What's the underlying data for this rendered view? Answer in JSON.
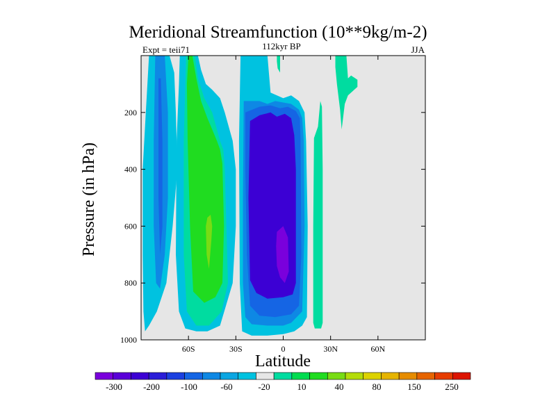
{
  "chart_data": {
    "type": "contour",
    "title": "Meridional Streamfunction (10**9kg/m-2)",
    "left_label": "Expt = teii71",
    "center_label": "112kyr BP",
    "right_label": "JJA",
    "xlabel": "Latitude",
    "ylabel": "Pressure (in hPa)",
    "xlim": [
      -90,
      90
    ],
    "ylim": [
      1000,
      0
    ],
    "x_ticks": [
      {
        "value": -60,
        "label": "60S"
      },
      {
        "value": -30,
        "label": "30S"
      },
      {
        "value": 0,
        "label": "0"
      },
      {
        "value": 30,
        "label": "30N"
      },
      {
        "value": 60,
        "label": "60N"
      }
    ],
    "y_ticks": [
      {
        "value": 200,
        "label": "200"
      },
      {
        "value": 400,
        "label": "400"
      },
      {
        "value": 600,
        "label": "600"
      },
      {
        "value": 800,
        "label": "800"
      },
      {
        "value": 1000,
        "label": "1000"
      }
    ],
    "background_color": "#e6e6e6",
    "colorbar": {
      "colors": [
        "#7a00dc",
        "#5a00d8",
        "#3c00d4",
        "#2b1ed8",
        "#1c40e0",
        "#1565e4",
        "#0e88e4",
        "#0aa6e2",
        "#00c2e0",
        "#e6e6e6",
        "#00dca0",
        "#00dc50",
        "#20dc20",
        "#78dc14",
        "#b4dc0a",
        "#dcd200",
        "#e6b400",
        "#e68c00",
        "#e66400",
        "#e63c00",
        "#dc1400"
      ],
      "labels": [
        "-300",
        "-200",
        "-100",
        "-60",
        "-20",
        "10",
        "40",
        "80",
        "150",
        "250"
      ]
    },
    "regions": [
      {
        "level": -20,
        "color": "#00c2e0",
        "lat": [
          -84.5,
          -72,
          -69,
          -68,
          -67,
          -70,
          -74,
          -80,
          -85,
          -87.5,
          -88.5,
          -89,
          -89,
          -87,
          -85
        ],
        "p": [
          0,
          0,
          60,
          200,
          400,
          600,
          800,
          900,
          950,
          970,
          900,
          700,
          400,
          200,
          0
        ]
      },
      {
        "level": -60,
        "color": "#0e88e4",
        "lat": [
          -80.5,
          -75,
          -73,
          -73,
          -75,
          -78,
          -80.5,
          -82,
          -82,
          -81
        ],
        "p": [
          0,
          0,
          200,
          500,
          700,
          820,
          800,
          600,
          300,
          0
        ]
      },
      {
        "level": -100,
        "color": "#1565e4",
        "lat": [
          -79,
          -77.5,
          -76.5,
          -76.5,
          -78,
          -79
        ],
        "p": [
          80,
          80,
          300,
          600,
          700,
          500
        ]
      },
      {
        "level": -20,
        "color": "#00c2e0",
        "lat": [
          -65.5,
          -54,
          -52,
          -49,
          -45,
          -40,
          -37,
          -32,
          -30,
          -30,
          -32,
          -40,
          -48,
          -55,
          -62,
          -66,
          -68,
          -67.5,
          -66
        ],
        "p": [
          0,
          0,
          50,
          100,
          120,
          150,
          200,
          300,
          400,
          600,
          800,
          950,
          970,
          970,
          960,
          900,
          700,
          300,
          100
        ]
      },
      {
        "level": 10,
        "color": "#00dca0",
        "lat": [
          -61.5,
          -56,
          -54,
          -50,
          -45,
          -42,
          -40,
          -38,
          -37,
          -36,
          -35,
          -39,
          -47,
          -55,
          -61,
          -63,
          -63
        ],
        "p": [
          0,
          0,
          80,
          150,
          200,
          260,
          300,
          330,
          400,
          600,
          800,
          900,
          950,
          950,
          900,
          700,
          300
        ]
      },
      {
        "level": 40,
        "color": "#20dc20",
        "lat": [
          -60,
          -57.5,
          -55,
          -52,
          -48,
          -45,
          -42,
          -40,
          -38.5,
          -37.5,
          -38.5,
          -43,
          -50,
          -57,
          -59,
          -60.5,
          -61
        ],
        "p": [
          0,
          0,
          80,
          160,
          220,
          260,
          300,
          330,
          380,
          600,
          800,
          850,
          870,
          830,
          600,
          300,
          100
        ]
      },
      {
        "level": 80,
        "color": "#78dc14",
        "lat": [
          -48,
          -46,
          -45,
          -45.5,
          -47,
          -48.5,
          -49
        ],
        "p": [
          570,
          560,
          600,
          650,
          750,
          700,
          600
        ]
      },
      {
        "level": -20,
        "color": "#00c2e0",
        "lat": [
          -27,
          -10,
          -8,
          0,
          5,
          10,
          13.5,
          14.5,
          15.5,
          15,
          12,
          7,
          0,
          -10,
          -20,
          -26,
          -27.5,
          -28
        ],
        "p": [
          0,
          0,
          130,
          150,
          140,
          160,
          200,
          300,
          600,
          920,
          950,
          970,
          980,
          985,
          985,
          970,
          800,
          300
        ]
      },
      {
        "level": -60,
        "color": "#0e88e4",
        "lat": [
          -25,
          -15,
          -10,
          -5,
          0,
          5,
          10,
          12,
          13,
          13.5,
          12,
          5,
          0,
          -10,
          -20,
          -24,
          -25.5,
          -25.5
        ],
        "p": [
          160,
          160,
          170,
          160,
          165,
          170,
          190,
          220,
          300,
          600,
          900,
          940,
          950,
          950,
          945,
          920,
          800,
          500
        ]
      },
      {
        "level": -100,
        "color": "#1565e4",
        "lat": [
          -24,
          -15,
          -8,
          -2,
          3,
          8,
          10.5,
          11,
          11.5,
          10,
          5,
          -5,
          -15,
          -21,
          -23,
          -24
        ],
        "p": [
          200,
          180,
          175,
          185,
          180,
          195,
          220,
          300,
          700,
          880,
          910,
          920,
          915,
          880,
          700,
          400
        ]
      },
      {
        "level": -200,
        "color": "#3c00d4",
        "lat": [
          -21,
          -15,
          -8,
          -4,
          1,
          5,
          7,
          8,
          8,
          6,
          0,
          -10,
          -17,
          -21,
          -22
        ],
        "p": [
          230,
          210,
          200,
          215,
          205,
          220,
          280,
          400,
          800,
          840,
          850,
          855,
          835,
          790,
          500
        ]
      },
      {
        "level": -300,
        "color": "#7a00dc",
        "lat": [
          -4,
          0,
          3,
          3.5,
          1,
          -2,
          -4,
          -4.5
        ],
        "p": [
          620,
          600,
          640,
          760,
          800,
          780,
          740,
          670
        ]
      },
      {
        "level": 10,
        "color": "#00dca0",
        "lat": [
          19.5,
          22,
          23.5,
          24.5,
          25,
          25,
          24,
          20,
          19,
          19
        ],
        "p": [
          290,
          250,
          160,
          180,
          400,
          940,
          960,
          960,
          940,
          600
        ]
      },
      {
        "level": 10,
        "color": "#00dca0",
        "lat": [
          33,
          40,
          41,
          43,
          47,
          47,
          44,
          41,
          39,
          37,
          36,
          34,
          33
        ],
        "p": [
          0,
          0,
          80,
          70,
          85,
          110,
          125,
          140,
          170,
          260,
          190,
          100,
          40
        ]
      },
      {
        "level": 10,
        "color": "#00dca0",
        "lat": [
          -4,
          -2,
          -2,
          -3.5,
          -4
        ],
        "p": [
          0,
          0,
          60,
          45,
          20
        ]
      }
    ]
  }
}
